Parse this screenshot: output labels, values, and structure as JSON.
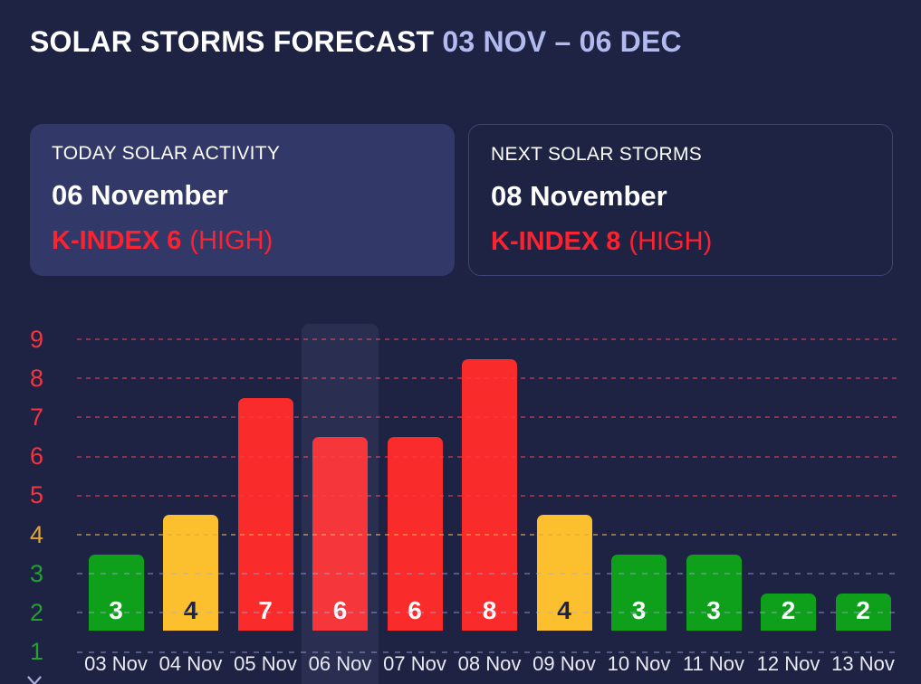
{
  "header": {
    "title": "SOLAR STORMS FORECAST",
    "range": "03 NOV – 06 DEC"
  },
  "cards": [
    {
      "label": "TODAY SOLAR ACTIVITY",
      "date": "06 November",
      "kindex": "K-INDEX 6",
      "level": "(HIGH)"
    },
    {
      "label": "NEXT SOLAR STORMS",
      "date": "08 November",
      "kindex": "K-INDEX 8",
      "level": "(HIGH)"
    }
  ],
  "colors": {
    "background": "#1e2243",
    "card_fill": "#323968",
    "card_border": "#3d4478",
    "title_accent": "#b3baf0",
    "kindex_red": "#fa232f"
  },
  "chart_data": {
    "type": "bar",
    "title": "",
    "categories": [
      "03 Nov",
      "04 Nov",
      "05 Nov",
      "06 Nov",
      "07 Nov",
      "08 Nov",
      "09 Nov",
      "10 Nov",
      "11 Nov",
      "12 Nov",
      "13 Nov"
    ],
    "values": [
      3,
      4,
      7,
      6,
      6,
      8,
      4,
      3,
      3,
      2,
      2
    ],
    "yticks": [
      9,
      8,
      7,
      6,
      5,
      4,
      3,
      2,
      1
    ],
    "ylim": [
      1,
      9
    ],
    "grid": true,
    "legend_position": "none",
    "highlighted_index": 3,
    "bar_colors": {
      "red": "#fa2b2b",
      "yellow": "#fcc02e",
      "green": "#0fa01b"
    },
    "tick_colors": {
      "red": "#f5353f",
      "yellow": "#e2a53c",
      "green": "#23a031"
    },
    "gridline_colors": {
      "red": "rgba(248,60,72,0.55)",
      "yellow": "rgba(226,165,60,0.6)",
      "green": "rgba(162,172,218,0.4)"
    },
    "value_label_light": "#ffffff",
    "value_label_dark": "#1d2348",
    "highlight_color": "rgba(190,200,255,0.08)"
  }
}
